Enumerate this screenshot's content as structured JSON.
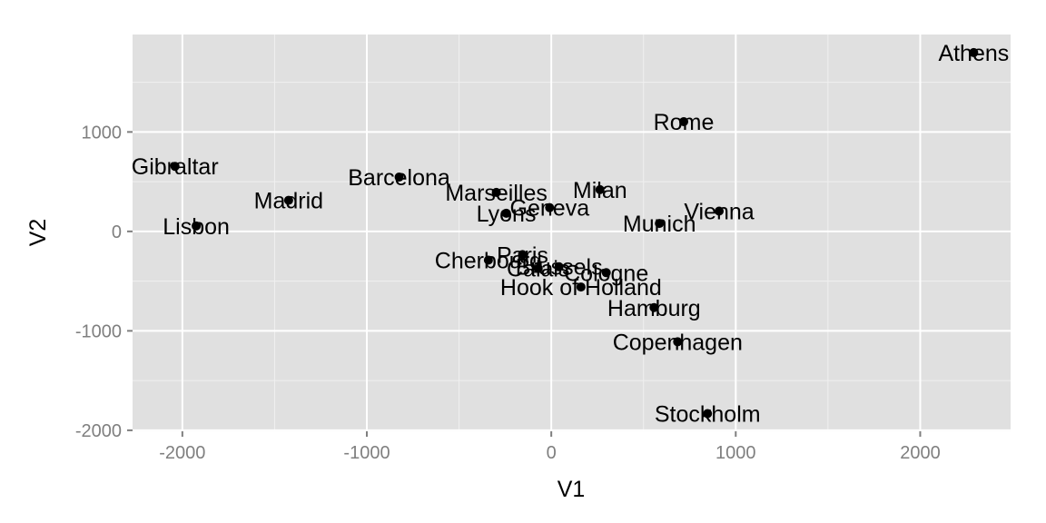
{
  "chart_data": {
    "type": "scatter",
    "title": "",
    "xlabel": "V1",
    "ylabel": "V2",
    "xlim": [
      -2270,
      2490
    ],
    "ylim": [
      -2010,
      1980
    ],
    "x_ticks": [
      -2000,
      -1000,
      0,
      1000,
      2000
    ],
    "y_ticks": [
      -2000,
      -1000,
      0,
      1000
    ],
    "x_tick_labels": [
      "-2000",
      "-1000",
      "0",
      "1000",
      "2000"
    ],
    "y_tick_labels": [
      "-2000",
      "-1000",
      "0",
      "1000"
    ],
    "grid": true,
    "legend": "none",
    "colors": {
      "panel": "#e0e0e0",
      "grid_major": "#ffffff",
      "grid_minor": "#f0f0f0",
      "point": "#000000"
    },
    "points": [
      {
        "label": "Athens",
        "x": 2290,
        "y": 1798
      },
      {
        "label": "Rome",
        "x": 718,
        "y": 1104
      },
      {
        "label": "Gibraltar",
        "x": -2040,
        "y": 654
      },
      {
        "label": "Barcelona",
        "x": -825,
        "y": 546
      },
      {
        "label": "Madrid",
        "x": -1424,
        "y": 313
      },
      {
        "label": "Lisbon",
        "x": -1925,
        "y": 55
      },
      {
        "label": "Marseilles",
        "x": -298,
        "y": 392
      },
      {
        "label": "Milan",
        "x": 264,
        "y": 420
      },
      {
        "label": "Geneva",
        "x": -9,
        "y": 239
      },
      {
        "label": "Lyons",
        "x": -244,
        "y": 183
      },
      {
        "label": "Vienna",
        "x": 910,
        "y": 204
      },
      {
        "label": "Munich",
        "x": 586,
        "y": 80
      },
      {
        "label": "Paris",
        "x": -156,
        "y": -233
      },
      {
        "label": "Cherbourg",
        "x": -341,
        "y": -289
      },
      {
        "label": "Brussels",
        "x": 42,
        "y": -355
      },
      {
        "label": "Calais",
        "x": -71,
        "y": -373
      },
      {
        "label": "Cologne",
        "x": 298,
        "y": -415
      },
      {
        "label": "Hook of Holland",
        "x": 161,
        "y": -559
      },
      {
        "label": "Hamburg",
        "x": 557,
        "y": -766
      },
      {
        "label": "Copenhagen",
        "x": 685,
        "y": -1110
      },
      {
        "label": "Stockholm",
        "x": 847,
        "y": -1832
      }
    ]
  }
}
